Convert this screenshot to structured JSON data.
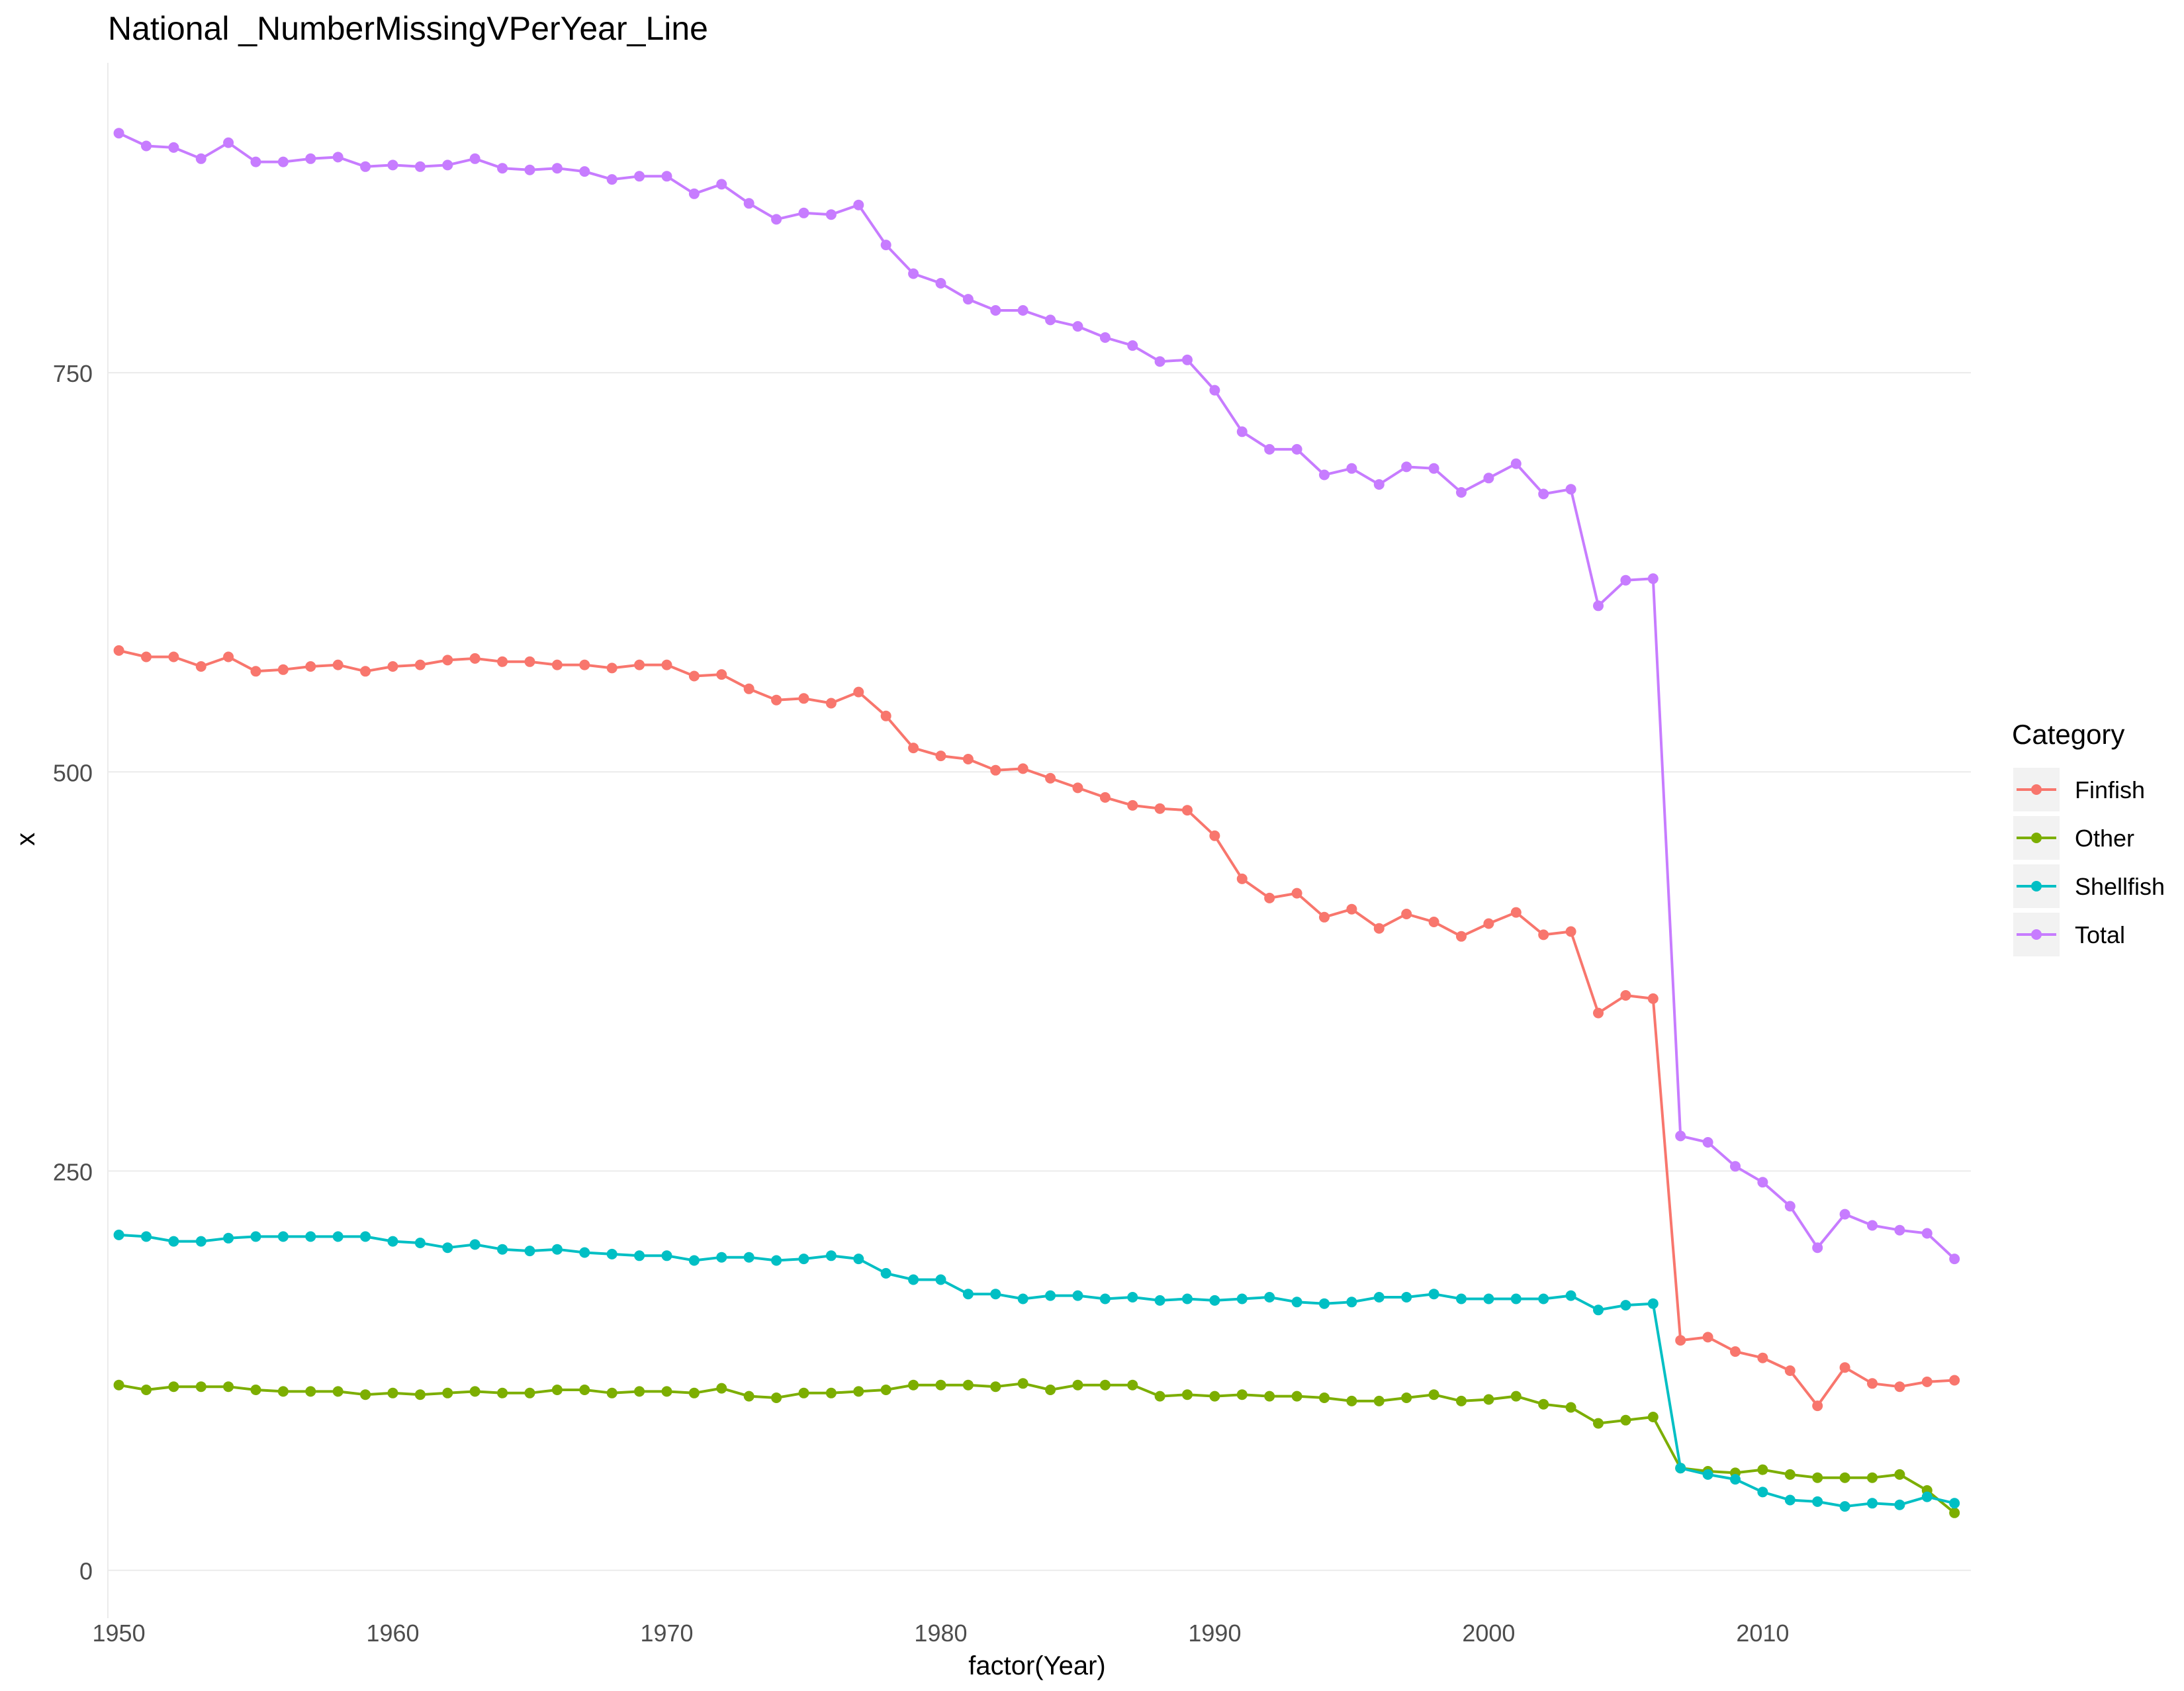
{
  "chart_data": {
    "type": "line",
    "title": "National _NumberMissingVPerYear_Line",
    "xlabel": "factor(Year)",
    "ylabel": "x",
    "ylim": [
      -30,
      944
    ],
    "xlim": [
      1949.6,
      2017.6
    ],
    "y_ticks": [
      0,
      250,
      500,
      750
    ],
    "x_ticks": [
      1950,
      1960,
      1970,
      1980,
      1990,
      2000,
      2010
    ],
    "grid": "horizontal",
    "legend": {
      "title": "Category",
      "position": "right"
    },
    "x": [
      1950,
      1951,
      1952,
      1953,
      1954,
      1955,
      1956,
      1957,
      1958,
      1959,
      1960,
      1961,
      1962,
      1963,
      1964,
      1965,
      1966,
      1967,
      1968,
      1969,
      1970,
      1971,
      1972,
      1973,
      1974,
      1975,
      1976,
      1977,
      1978,
      1979,
      1980,
      1981,
      1982,
      1983,
      1984,
      1985,
      1986,
      1987,
      1988,
      1989,
      1990,
      1991,
      1992,
      1993,
      1994,
      1995,
      1996,
      1997,
      1998,
      1999,
      2000,
      2001,
      2002,
      2003,
      2004,
      2005,
      2006,
      2007,
      2008,
      2009,
      2010,
      2011,
      2012,
      2013,
      2014,
      2015,
      2016,
      2017
    ],
    "series": [
      {
        "name": "Finfish",
        "color": "#F8766D",
        "values": [
          576,
          572,
          572,
          566,
          572,
          563,
          564,
          566,
          567,
          563,
          566,
          567,
          570,
          571,
          569,
          569,
          567,
          567,
          565,
          567,
          567,
          560,
          561,
          552,
          545,
          546,
          543,
          550,
          535,
          515,
          510,
          508,
          501,
          502,
          496,
          490,
          484,
          479,
          477,
          476,
          460,
          433,
          421,
          424,
          409,
          414,
          402,
          411,
          406,
          397,
          405,
          412,
          398,
          400,
          349,
          360,
          358,
          144,
          146,
          137,
          133,
          125,
          103,
          127,
          117,
          115,
          118,
          119
        ]
      },
      {
        "name": "Other",
        "color": "#7CAE00",
        "values": [
          116,
          113,
          115,
          115,
          115,
          113,
          112,
          112,
          112,
          110,
          111,
          110,
          111,
          112,
          111,
          111,
          113,
          113,
          111,
          112,
          112,
          111,
          114,
          109,
          108,
          111,
          111,
          112,
          113,
          116,
          116,
          116,
          115,
          117,
          113,
          116,
          116,
          116,
          109,
          110,
          109,
          110,
          109,
          109,
          108,
          106,
          106,
          108,
          110,
          106,
          107,
          109,
          104,
          102,
          92,
          94,
          96,
          64,
          62,
          61,
          63,
          60,
          58,
          58,
          58,
          60,
          50,
          36
        ]
      },
      {
        "name": "Shellfish",
        "color": "#00BFC4",
        "values": [
          210,
          209,
          206,
          206,
          208,
          209,
          209,
          209,
          209,
          209,
          206,
          205,
          202,
          204,
          201,
          200,
          201,
          199,
          198,
          197,
          197,
          194,
          196,
          196,
          194,
          195,
          197,
          195,
          186,
          182,
          182,
          173,
          173,
          170,
          172,
          172,
          170,
          171,
          169,
          170,
          169,
          170,
          171,
          168,
          167,
          168,
          171,
          171,
          173,
          170,
          170,
          170,
          170,
          172,
          163,
          166,
          167,
          64,
          60,
          57,
          49,
          44,
          43,
          40,
          42,
          41,
          46,
          42
        ]
      },
      {
        "name": "Total",
        "color": "#C77CFF",
        "values": [
          900,
          892,
          891,
          884,
          894,
          882,
          882,
          884,
          885,
          879,
          880,
          879,
          880,
          884,
          878,
          877,
          878,
          876,
          871,
          873,
          873,
          862,
          868,
          856,
          846,
          850,
          849,
          855,
          830,
          812,
          806,
          796,
          789,
          789,
          783,
          779,
          772,
          767,
          757,
          758,
          739,
          713,
          702,
          702,
          686,
          690,
          680,
          691,
          690,
          675,
          684,
          693,
          674,
          677,
          604,
          620,
          621,
          272,
          268,
          253,
          243,
          228,
          202,
          223,
          216,
          213,
          211,
          195
        ]
      }
    ]
  }
}
